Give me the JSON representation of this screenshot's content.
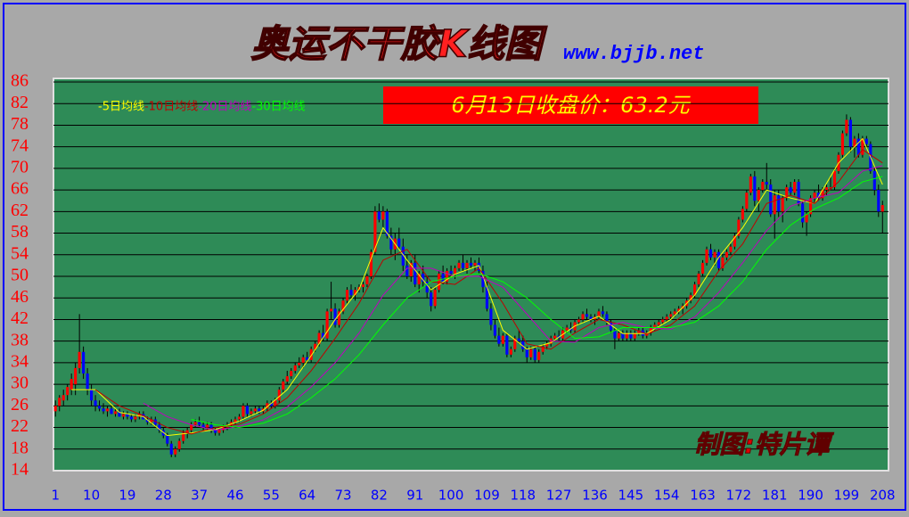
{
  "chart_data": {
    "type": "candlestick",
    "title": "奥运不干胶K线图",
    "subtitle": "www.bjjb.net",
    "price_label": "6月13日收盘价：63.2元",
    "credit": "制图:特片谭",
    "up_color": "#ff0000",
    "down_color": "#0000ff",
    "xlim": [
      0.5,
      209.5
    ],
    "xticks": [
      1,
      10,
      19,
      28,
      37,
      46,
      55,
      64,
      73,
      82,
      91,
      100,
      109,
      118,
      127,
      136,
      145,
      154,
      163,
      172,
      181,
      190,
      199,
      208
    ],
    "ylim": [
      14,
      86
    ],
    "yticks": [
      14,
      18,
      22,
      26,
      30,
      34,
      38,
      42,
      46,
      50,
      54,
      58,
      62,
      66,
      70,
      74,
      78,
      82,
      86
    ],
    "grid": true,
    "ohlc": [
      [
        25,
        27,
        24,
        26
      ],
      [
        26,
        28,
        25,
        27.5
      ],
      [
        27,
        29,
        26,
        28
      ],
      [
        28,
        30,
        27,
        29.5
      ],
      [
        29,
        32,
        28,
        31
      ],
      [
        30,
        34,
        28,
        33
      ],
      [
        33,
        43,
        32,
        36
      ],
      [
        36,
        37,
        31,
        32
      ],
      [
        32,
        33,
        28,
        29
      ],
      [
        29,
        30,
        26,
        27
      ],
      [
        27,
        28,
        25,
        26
      ],
      [
        26,
        27,
        25,
        25.5
      ],
      [
        25.5,
        26.5,
        24.5,
        25
      ],
      [
        25,
        26,
        24,
        25.5
      ],
      [
        25.5,
        26,
        24.5,
        24.5
      ],
      [
        24.5,
        25.5,
        24,
        25
      ],
      [
        25,
        25.5,
        24,
        24
      ],
      [
        24,
        25,
        23.5,
        24.5
      ],
      [
        24.5,
        25,
        23.5,
        24
      ],
      [
        24,
        24.5,
        23,
        23.5
      ],
      [
        23.5,
        24.5,
        23,
        24
      ],
      [
        24,
        25,
        23.5,
        24.5
      ],
      [
        24.5,
        25,
        23.5,
        23.5
      ],
      [
        23.5,
        24,
        22.5,
        23
      ],
      [
        23,
        24,
        22.5,
        23.5
      ],
      [
        23.5,
        24,
        22,
        22.5
      ],
      [
        22.5,
        23,
        21,
        21.5
      ],
      [
        21.5,
        22,
        20,
        20.5
      ],
      [
        20.5,
        21,
        18.5,
        19
      ],
      [
        19,
        19.5,
        16.5,
        17
      ],
      [
        17,
        18.5,
        16.5,
        18
      ],
      [
        18,
        20,
        17.5,
        19.5
      ],
      [
        19.5,
        21.5,
        19,
        21
      ],
      [
        21,
        22,
        20,
        21.5
      ],
      [
        21.5,
        23,
        21,
        22.5
      ],
      [
        22.5,
        23.5,
        22,
        23
      ],
      [
        23,
        24,
        22,
        22.5
      ],
      [
        22.5,
        23,
        21.5,
        22
      ],
      [
        22,
        23,
        21.5,
        22.5
      ],
      [
        22.5,
        23,
        21,
        21.5
      ],
      [
        21.5,
        22,
        20.5,
        21
      ],
      [
        21,
        22,
        20.5,
        21.5
      ],
      [
        21.5,
        22.5,
        21,
        22
      ],
      [
        22,
        23,
        21.5,
        22.5
      ],
      [
        22.5,
        23.5,
        22,
        23
      ],
      [
        23,
        24,
        22.5,
        23.5
      ],
      [
        23.5,
        24.5,
        23,
        24
      ],
      [
        24,
        26.5,
        23.5,
        26
      ],
      [
        26,
        26.5,
        24,
        24.5
      ],
      [
        24.5,
        25.5,
        24,
        25
      ],
      [
        25,
        26,
        24.5,
        25.5
      ],
      [
        25.5,
        26,
        24.5,
        25
      ],
      [
        25,
        26,
        24.5,
        25.5
      ],
      [
        25.5,
        27,
        25,
        26.5
      ],
      [
        26.5,
        27,
        25.5,
        26
      ],
      [
        26,
        27.5,
        25.5,
        27
      ],
      [
        27,
        29.5,
        26.5,
        29
      ],
      [
        29,
        31,
        28.5,
        30.5
      ],
      [
        30.5,
        32.5,
        30,
        31.5
      ],
      [
        31.5,
        33,
        31,
        32.5
      ],
      [
        32.5,
        34,
        32,
        33.5
      ],
      [
        33.5,
        35,
        33,
        34
      ],
      [
        34,
        35.5,
        33,
        35
      ],
      [
        35,
        36,
        34,
        34.5
      ],
      [
        34.5,
        37,
        34,
        36.5
      ],
      [
        36.5,
        38,
        36,
        37.5
      ],
      [
        37.5,
        40,
        37,
        39.5
      ],
      [
        39.5,
        41,
        38,
        38.5
      ],
      [
        38.5,
        44,
        38,
        43.5
      ],
      [
        43.5,
        49,
        42,
        44
      ],
      [
        44,
        45,
        40.5,
        41
      ],
      [
        41,
        44,
        40.5,
        43.5
      ],
      [
        43.5,
        46,
        43,
        45.5
      ],
      [
        45.5,
        48,
        45,
        47.5
      ],
      [
        47.5,
        48.5,
        46,
        46.5
      ],
      [
        46.5,
        48,
        45.5,
        47.5
      ],
      [
        47.5,
        48.5,
        47,
        48
      ],
      [
        48,
        49,
        47,
        48.5
      ],
      [
        48.5,
        50.5,
        48,
        50
      ],
      [
        50,
        55,
        49.5,
        54.5
      ],
      [
        54.5,
        63,
        54,
        62
      ],
      [
        62,
        63.5,
        60,
        60.5
      ],
      [
        60.5,
        63,
        59,
        62
      ],
      [
        62,
        62.5,
        57,
        57.5
      ],
      [
        57.5,
        59,
        54,
        55
      ],
      [
        55,
        58,
        53,
        57
      ],
      [
        57,
        59,
        55,
        55.5
      ],
      [
        55.5,
        57,
        51,
        52
      ],
      [
        52,
        54,
        49.5,
        50
      ],
      [
        50,
        53,
        49,
        52.5
      ],
      [
        52.5,
        54,
        48,
        48.5
      ],
      [
        48.5,
        51,
        47,
        50.5
      ],
      [
        50.5,
        52,
        48,
        49
      ],
      [
        49,
        50,
        46,
        47
      ],
      [
        47,
        48,
        43.5,
        44.5
      ],
      [
        44.5,
        48,
        44,
        47.5
      ],
      [
        47.5,
        51,
        47,
        50.5
      ],
      [
        50.5,
        52,
        48.5,
        49
      ],
      [
        49,
        51.5,
        48.5,
        51
      ],
      [
        51,
        52,
        50,
        50.5
      ],
      [
        50.5,
        52,
        49.5,
        51.5
      ],
      [
        51.5,
        53,
        51,
        52.5
      ],
      [
        52.5,
        54,
        51,
        51.5
      ],
      [
        51.5,
        53,
        50.5,
        52.5
      ],
      [
        52.5,
        53.5,
        51.5,
        52
      ],
      [
        52,
        53,
        51,
        52.5
      ],
      [
        52.5,
        53.5,
        50.5,
        51
      ],
      [
        51,
        52,
        47,
        48
      ],
      [
        48,
        49,
        43.5,
        44
      ],
      [
        44,
        45,
        40,
        41
      ],
      [
        41,
        42,
        38.5,
        39
      ],
      [
        39,
        40.5,
        37,
        37.5
      ],
      [
        37.5,
        39.5,
        37,
        39
      ],
      [
        39,
        39.5,
        35,
        35.5
      ],
      [
        35.5,
        37,
        35,
        36.5
      ],
      [
        36.5,
        39,
        36,
        38.5
      ],
      [
        38.5,
        40,
        37.5,
        38
      ],
      [
        38,
        39,
        36,
        36.5
      ],
      [
        36.5,
        37,
        34,
        35
      ],
      [
        35,
        37,
        34.5,
        36.5
      ],
      [
        36.5,
        37,
        34,
        34.5
      ],
      [
        34.5,
        36.5,
        34,
        36
      ],
      [
        36,
        37.5,
        35.5,
        37
      ],
      [
        37,
        38,
        36.5,
        37.5
      ],
      [
        37.5,
        39,
        37,
        38.5
      ],
      [
        38.5,
        39.5,
        38,
        39
      ],
      [
        39,
        40,
        38,
        38.5
      ],
      [
        38.5,
        40.5,
        38,
        40
      ],
      [
        40,
        41,
        39.5,
        40.5
      ],
      [
        40.5,
        41.5,
        39.5,
        40
      ],
      [
        40,
        42,
        39.5,
        41.5
      ],
      [
        41.5,
        42.5,
        41,
        42
      ],
      [
        42,
        43.5,
        41.5,
        43
      ],
      [
        43,
        44,
        42,
        42.5
      ],
      [
        42.5,
        43,
        41.5,
        42
      ],
      [
        42,
        43,
        41,
        42.5
      ],
      [
        42.5,
        44,
        42,
        43.5
      ],
      [
        43.5,
        44.5,
        42.5,
        43
      ],
      [
        43,
        43.5,
        41,
        41.5
      ],
      [
        41.5,
        42,
        39.5,
        40
      ],
      [
        40,
        40.5,
        36.5,
        38.5
      ],
      [
        38.5,
        40,
        38,
        39.5
      ],
      [
        39.5,
        40,
        38,
        38.5
      ],
      [
        38.5,
        40,
        38,
        39.5
      ],
      [
        39.5,
        40,
        38,
        38.5
      ],
      [
        38.5,
        40,
        38,
        39.5
      ],
      [
        39.5,
        40.5,
        39,
        40
      ],
      [
        40,
        40.5,
        38.5,
        39
      ],
      [
        39,
        40,
        38.5,
        39.5
      ],
      [
        39.5,
        41,
        39,
        40.5
      ],
      [
        40.5,
        41.5,
        40,
        41
      ],
      [
        41,
        42,
        40.5,
        41.5
      ],
      [
        41.5,
        42.5,
        41,
        42
      ],
      [
        42,
        43,
        41.5,
        42.5
      ],
      [
        42.5,
        43.5,
        42,
        43
      ],
      [
        43,
        44,
        42.5,
        43.5
      ],
      [
        43.5,
        44.5,
        43,
        44
      ],
      [
        44,
        45,
        43,
        44.5
      ],
      [
        44.5,
        46,
        44,
        45.5
      ],
      [
        45.5,
        47,
        45,
        46.5
      ],
      [
        46.5,
        49,
        46,
        48.5
      ],
      [
        48.5,
        51,
        48,
        50.5
      ],
      [
        50.5,
        53,
        50,
        52.5
      ],
      [
        52.5,
        55.5,
        52,
        55
      ],
      [
        55,
        56,
        53,
        53.5
      ],
      [
        53.5,
        55,
        52,
        54.5
      ],
      [
        54.5,
        55,
        51,
        51.5
      ],
      [
        51.5,
        54,
        51,
        53.5
      ],
      [
        53.5,
        55,
        53,
        54.5
      ],
      [
        54.5,
        56,
        54,
        55.5
      ],
      [
        55.5,
        58,
        55,
        57.5
      ],
      [
        57.5,
        61,
        57,
        60.5
      ],
      [
        60.5,
        63,
        60,
        62.5
      ],
      [
        62.5,
        66,
        62,
        65.5
      ],
      [
        65.5,
        69,
        65,
        68.5
      ],
      [
        68.5,
        69.5,
        63,
        64
      ],
      [
        64,
        66.5,
        62,
        66
      ],
      [
        66,
        68,
        65.5,
        67.5
      ],
      [
        67.5,
        71,
        66,
        67
      ],
      [
        67,
        68,
        61,
        61.5
      ],
      [
        61.5,
        66,
        57,
        65
      ],
      [
        65,
        66,
        61,
        62
      ],
      [
        62,
        65,
        60,
        64.5
      ],
      [
        64.5,
        67,
        64,
        66.5
      ],
      [
        66.5,
        67.5,
        65,
        65.5
      ],
      [
        65.5,
        68,
        65,
        67.5
      ],
      [
        67.5,
        68,
        63,
        63.5
      ],
      [
        63.5,
        64,
        59,
        60
      ],
      [
        60,
        62,
        57.5,
        61.5
      ],
      [
        61.5,
        65,
        61,
        64.5
      ],
      [
        64.5,
        66,
        63.5,
        65.5
      ],
      [
        65.5,
        67,
        64,
        64.5
      ],
      [
        64.5,
        66.5,
        64,
        66
      ],
      [
        66,
        67,
        65,
        66.5
      ],
      [
        66.5,
        68.5,
        66,
        66.5
      ],
      [
        66.5,
        70,
        66,
        69.5
      ],
      [
        69.5,
        73,
        69,
        72.5
      ],
      [
        72.5,
        77,
        72,
        76.5
      ],
      [
        76.5,
        80,
        76,
        79
      ],
      [
        79,
        79.5,
        73,
        74
      ],
      [
        74,
        76,
        72,
        75.5
      ],
      [
        75.5,
        76.5,
        72,
        72.5
      ],
      [
        72.5,
        76,
        72,
        75.5
      ],
      [
        75.5,
        76,
        74,
        74.5
      ],
      [
        74.5,
        75,
        69,
        69.5
      ],
      [
        69.5,
        70,
        65,
        66
      ],
      [
        66,
        67,
        61,
        62
      ],
      [
        62,
        64,
        58,
        63.2
      ]
    ],
    "x": [
      5,
      11,
      17,
      23,
      29,
      35,
      41,
      47,
      53,
      59,
      65,
      71,
      77,
      83,
      89,
      95,
      101,
      107,
      113,
      119,
      125,
      131,
      137,
      143,
      149,
      155,
      161,
      167,
      173,
      179,
      185,
      191,
      197,
      203,
      208
    ],
    "series": [
      {
        "name": "-5日均线",
        "color": "#ffff00",
        "values": [
          29,
          29,
          24.8,
          24,
          20.5,
          21,
          21.6,
          23.2,
          25.2,
          29,
          35.3,
          42,
          47.6,
          59,
          53,
          47.5,
          50.4,
          52,
          40,
          36.5,
          37.7,
          40.8,
          42.6,
          39.4,
          39.4,
          42,
          46.5,
          53.5,
          59,
          66,
          64.5,
          63.5,
          71,
          75.5,
          67
        ]
      },
      {
        "name": "-10日均线",
        "color": "#c00000",
        "values": [
          null,
          29,
          26,
          24.2,
          22,
          20.8,
          22,
          22.6,
          24.5,
          27.5,
          32.5,
          38.5,
          45,
          53,
          55,
          49,
          48.5,
          51.5,
          45,
          37.5,
          36.5,
          39.5,
          42,
          41,
          39.3,
          41,
          44.5,
          51,
          56,
          63.5,
          65,
          63.5,
          67.5,
          73.5,
          71
        ]
      },
      {
        "name": "-20日均线",
        "color": "#c000c0",
        "values": [
          null,
          null,
          null,
          26.5,
          24,
          22.5,
          21.5,
          22.2,
          23.4,
          25.8,
          29.5,
          34,
          39.5,
          46.5,
          51.5,
          51.5,
          50,
          50,
          48,
          43,
          38,
          37.8,
          40.5,
          41.5,
          40.5,
          40.2,
          42.5,
          47,
          52.5,
          58.5,
          63,
          64.5,
          65.5,
          69.5,
          70.5
        ]
      },
      {
        "name": "-30日均线",
        "color": "#00ff00",
        "values": [
          null,
          null,
          null,
          null,
          null,
          23.5,
          22.5,
          22,
          22.8,
          24.5,
          27.5,
          31,
          35.5,
          41,
          46,
          49,
          50,
          50.5,
          49,
          46,
          42,
          38.5,
          38.8,
          40.5,
          40.5,
          40.5,
          41.5,
          44.5,
          49,
          55,
          59.5,
          62.5,
          64.5,
          67.5,
          68.5
        ]
      }
    ]
  }
}
